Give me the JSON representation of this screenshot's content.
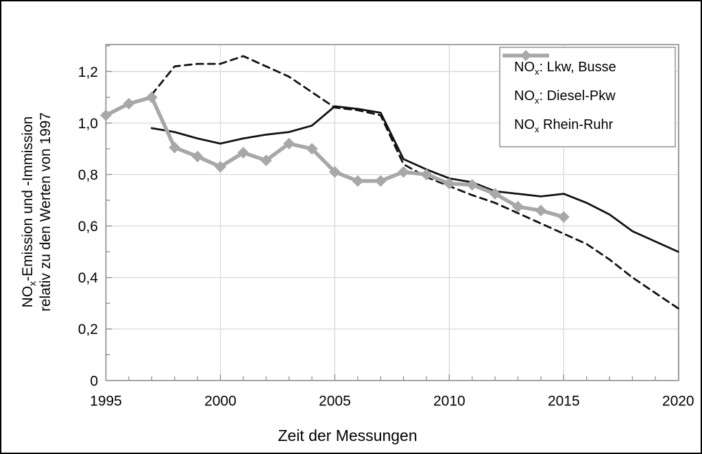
{
  "figure": {
    "xlabel": "Zeit der Messungen",
    "ylabel_line1": {
      "prefix": "NO",
      "sub": "x",
      "rest": "-Emission und -Immission"
    },
    "ylabel_line2": "relativ zu den Werten von 1997"
  },
  "legend": {
    "items": [
      {
        "prefix": "NO",
        "sub": "x",
        "rest": ": Lkw, Busse"
      },
      {
        "prefix": "NO",
        "sub": "x",
        "rest": ": Diesel-Pkw"
      },
      {
        "prefix": "NO",
        "sub": "x",
        "rest": " Rhein-Ruhr"
      }
    ]
  },
  "colors": {
    "line_black": "#111111",
    "line_gray": "#a8a8a8",
    "grid": "#d9d9d9",
    "frame": "#8c8c8c",
    "legend_border": "#adadad"
  },
  "chart_data": {
    "type": "line",
    "title": "",
    "xlabel": "Zeit der Messungen",
    "ylabel": "NOx-Emission und -Immission relativ zu den Werten von 1997",
    "xlim": [
      1995,
      2020
    ],
    "ylim": [
      0,
      1.3
    ],
    "grid": true,
    "legend_position": "top-right",
    "x_ticks": [
      1995,
      2000,
      2005,
      2010,
      2015,
      2020
    ],
    "x_tick_labels": [
      "1995",
      "2000",
      "2005",
      "2010",
      "2015",
      "2020"
    ],
    "y_ticks": [
      0,
      0.2,
      0.4,
      0.6,
      0.8,
      1.0,
      1.2
    ],
    "y_tick_labels": [
      "0",
      "0,2",
      "0,4",
      "0,6",
      "0,8",
      "1,0",
      "1,2"
    ],
    "series": [
      {
        "name": "NOx: Lkw, Busse",
        "style": "dashed",
        "marker": "none",
        "color": "#111111",
        "x": [
          1997,
          1998,
          1999,
          2000,
          2001,
          2002,
          2003,
          2004,
          2005,
          2006,
          2007,
          2008,
          2009,
          2010,
          2011,
          2012,
          2013,
          2014,
          2015,
          2016,
          2017,
          2018,
          2019,
          2020
        ],
        "y": [
          1.11,
          1.22,
          1.23,
          1.23,
          1.26,
          1.22,
          1.18,
          1.12,
          1.06,
          1.05,
          1.03,
          0.84,
          0.79,
          0.755,
          0.72,
          0.69,
          0.65,
          0.61,
          0.57,
          0.53,
          0.47,
          0.4,
          0.34,
          0.28
        ]
      },
      {
        "name": "NOx: Diesel-Pkw",
        "style": "solid",
        "marker": "none",
        "color": "#111111",
        "x": [
          1997,
          1998,
          1999,
          2000,
          2001,
          2002,
          2003,
          2004,
          2005,
          2006,
          2007,
          2008,
          2009,
          2010,
          2011,
          2012,
          2013,
          2014,
          2015,
          2016,
          2017,
          2018,
          2019,
          2020
        ],
        "y": [
          0.98,
          0.965,
          0.94,
          0.92,
          0.94,
          0.955,
          0.965,
          0.99,
          1.065,
          1.055,
          1.04,
          0.86,
          0.82,
          0.785,
          0.77,
          0.735,
          0.725,
          0.715,
          0.725,
          0.69,
          0.645,
          0.58,
          0.54,
          0.5
        ]
      },
      {
        "name": "NOx Rhein-Ruhr",
        "style": "solid",
        "marker": "diamond",
        "color": "#a8a8a8",
        "x": [
          1995,
          1996,
          1997,
          1998,
          1999,
          2000,
          2001,
          2002,
          2003,
          2004,
          2005,
          2006,
          2007,
          2008,
          2009,
          2010,
          2011,
          2012,
          2013,
          2014,
          2015
        ],
        "y": [
          1.03,
          1.075,
          1.1,
          0.905,
          0.87,
          0.83,
          0.885,
          0.855,
          0.92,
          0.9,
          0.81,
          0.775,
          0.775,
          0.81,
          0.8,
          0.765,
          0.76,
          0.725,
          0.675,
          0.66,
          0.635
        ]
      }
    ]
  }
}
